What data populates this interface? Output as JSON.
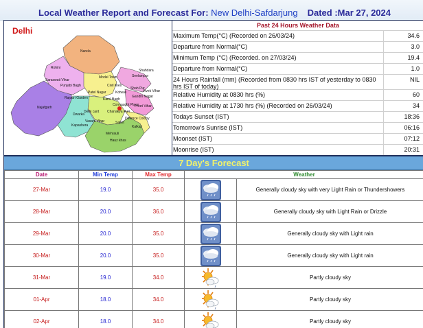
{
  "header": {
    "prefix": "Local Weather Report and Forecast For:",
    "station": "New Delhi-Safdarjung",
    "dated": "Dated :Mar 27, 2024"
  },
  "map": {
    "title": "Delhi",
    "region_colors": {
      "north": "#f2b37f",
      "north_west": "#eeb1ee",
      "west": "#a980e6",
      "central": "#f7f08f",
      "south_west": "#8fe3d3",
      "south": "#9ad36a",
      "east": "#f29ad8",
      "shahdara": "#f0a8e0",
      "new_delhi": "#d9f07d"
    },
    "labels": [
      "Narela",
      "Rohini",
      "Model Town",
      "Civil lines",
      "Seelampur",
      "Shahdara",
      "Punjabi Bagh",
      "Saraswati Vihar",
      "Patel Nagar",
      "Kotwali",
      "Karol Bagh",
      "Gandhi Nagar",
      "Rajouri Garden",
      "Connaught Place",
      "Preet Vihar",
      "Najafgarh",
      "Delhi cant",
      "Chanakya Puri",
      "Vivek Vihar",
      "Dwarka",
      "Vasant Vihar",
      "Defence Colony",
      "Saket",
      "Kalkaji",
      "Mehrauli",
      "Hauz khas",
      "Kapashera",
      "Shah Pur"
    ]
  },
  "observations": {
    "heading": "Past 24 Hours Weather Data",
    "rows": [
      {
        "label": "Maximum Temp(°C) (Recorded on 26/03/24)",
        "value": "34.6"
      },
      {
        "label": "Departure from Normal(°C)",
        "value": "3.0"
      },
      {
        "label": "Minimum Temp (°C) (Recorded. on 27/03/24)",
        "value": "19.4"
      },
      {
        "label": "Departure from Normal(°C)",
        "value": "1.0"
      },
      {
        "label": "24 Hours Rainfall (mm) (Recorded from 0830 hrs IST of yesterday to 0830 hrs IST of today)",
        "value": "NIL"
      },
      {
        "label": "Relative Humidity at 0830 hrs (%)",
        "value": "60"
      },
      {
        "label": "Relative Humidity at 1730 hrs (%) (Recorded on 26/03/24)",
        "value": "34"
      },
      {
        "label": "Todays Sunset (IST)",
        "value": "18:36"
      },
      {
        "label": "Tomorrow's Sunrise (IST)",
        "value": "06:16"
      },
      {
        "label": "Moonset (IST)",
        "value": "07:12"
      },
      {
        "label": "Moonrise (IST)",
        "value": "20:31"
      }
    ]
  },
  "forecast": {
    "title": "7 Day's Forecast",
    "columns": {
      "date": "Date",
      "min": "Min Temp",
      "max": "Max Temp",
      "weather": "Weather"
    },
    "days": [
      {
        "date": "27-Mar",
        "min": "19.0",
        "max": "35.0",
        "icon": "cloud-rain-icon",
        "desc": "Generally cloudy sky with very Light Rain or Thundershowers"
      },
      {
        "date": "28-Mar",
        "min": "20.0",
        "max": "36.0",
        "icon": "cloud-rain-icon",
        "desc": "Generally cloudy sky with Light Rain or Drizzle"
      },
      {
        "date": "29-Mar",
        "min": "20.0",
        "max": "35.0",
        "icon": "cloud-rain-icon",
        "desc": "Generally cloudy sky with Light rain"
      },
      {
        "date": "30-Mar",
        "min": "20.0",
        "max": "35.0",
        "icon": "cloud-rain-icon",
        "desc": "Generally cloudy sky with Light rain"
      },
      {
        "date": "31-Mar",
        "min": "19.0",
        "max": "34.0",
        "icon": "partly-cloudy-icon",
        "desc": "Partly cloudy sky"
      },
      {
        "date": "01-Apr",
        "min": "18.0",
        "max": "34.0",
        "icon": "partly-cloudy-icon",
        "desc": "Partly cloudy sky"
      },
      {
        "date": "02-Apr",
        "min": "18.0",
        "max": "34.0",
        "icon": "partly-cloudy-icon",
        "desc": "Partly cloudy sky"
      }
    ]
  }
}
